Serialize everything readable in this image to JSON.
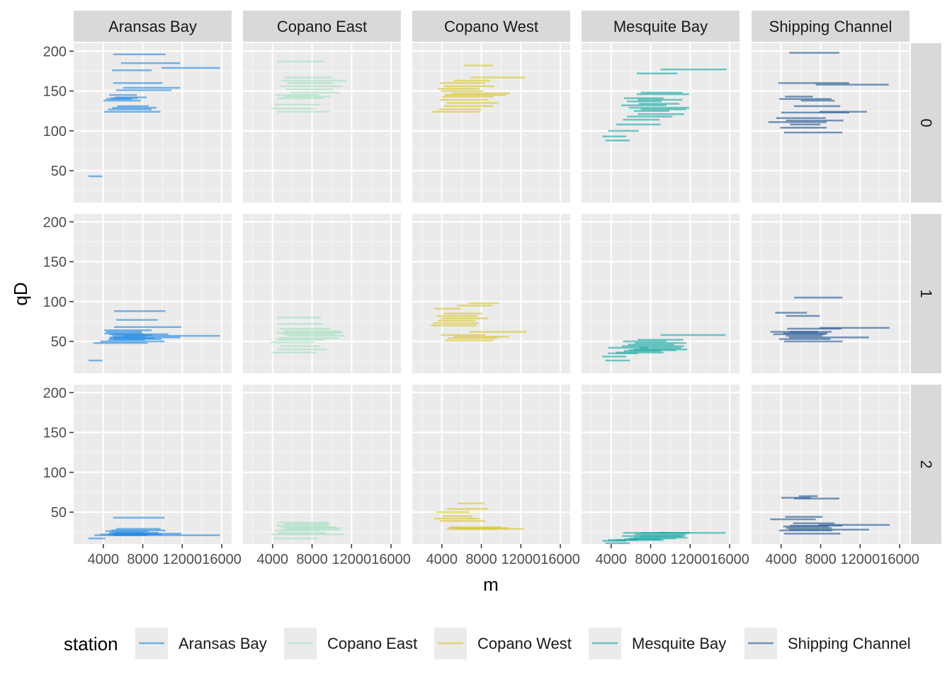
{
  "chart_data": {
    "type": "line",
    "xlabel": "m",
    "ylabel": "qD",
    "x_ticks": [
      4000,
      8000,
      12000,
      16000
    ],
    "y_ticks": [
      50,
      100,
      150,
      200
    ],
    "xlim": [
      1000,
      17000
    ],
    "ylim": [
      10,
      210
    ],
    "facet_cols": [
      "Aransas Bay",
      "Copano East",
      "Copano West",
      "Mesquite Bay",
      "Shipping Channel"
    ],
    "facet_rows": [
      "0",
      "1",
      "2"
    ],
    "legend": {
      "title": "station",
      "position": "bottom",
      "entries": [
        "Aransas Bay",
        "Copano East",
        "Copano West",
        "Mesquite Bay",
        "Shipping Channel"
      ]
    },
    "colors": {
      "Aransas Bay": "#1e88e5",
      "Copano East": "#a3dfbf",
      "Copano West": "#d9c52c",
      "Mesquite Bay": "#16a9a3",
      "Shipping Channel": "#1f5591"
    },
    "panels": [
      {
        "station": "Aransas Bay",
        "row": "0",
        "segments": [
          [
            2500,
            3900,
            43
          ],
          [
            4100,
            9800,
            124
          ],
          [
            4500,
            8900,
            127
          ],
          [
            4900,
            9400,
            129
          ],
          [
            5400,
            8600,
            131
          ],
          [
            4000,
            7800,
            138
          ],
          [
            4300,
            6900,
            140
          ],
          [
            4700,
            7500,
            141
          ],
          [
            5200,
            8400,
            142
          ],
          [
            4600,
            7400,
            145
          ],
          [
            5300,
            10900,
            151
          ],
          [
            6000,
            11800,
            154
          ],
          [
            5000,
            10000,
            160
          ],
          [
            4900,
            8900,
            176
          ],
          [
            9900,
            15800,
            179
          ],
          [
            5800,
            11800,
            185
          ],
          [
            5000,
            10300,
            196
          ]
        ]
      },
      {
        "station": "Copano East",
        "row": "0",
        "segments": [
          [
            4400,
            9800,
            124
          ],
          [
            3900,
            8200,
            128
          ],
          [
            4200,
            8800,
            133
          ],
          [
            4500,
            9200,
            141
          ],
          [
            4300,
            8700,
            145
          ],
          [
            5100,
            9900,
            143
          ],
          [
            5800,
            10800,
            148
          ],
          [
            5400,
            10100,
            152
          ],
          [
            4700,
            11100,
            156
          ],
          [
            5500,
            10200,
            160
          ],
          [
            4900,
            11500,
            163
          ],
          [
            5200,
            10100,
            167
          ],
          [
            4500,
            9200,
            187
          ]
        ]
      },
      {
        "station": "Copano West",
        "row": "0",
        "segments": [
          [
            3000,
            7800,
            124
          ],
          [
            3700,
            8000,
            127
          ],
          [
            4200,
            9200,
            131
          ],
          [
            4500,
            9800,
            135
          ],
          [
            3800,
            8700,
            139
          ],
          [
            4000,
            9200,
            143
          ],
          [
            4300,
            10500,
            145
          ],
          [
            5000,
            10900,
            147
          ],
          [
            3900,
            8200,
            150
          ],
          [
            3600,
            7800,
            153
          ],
          [
            4200,
            9300,
            156
          ],
          [
            3800,
            8400,
            160
          ],
          [
            5200,
            8900,
            163
          ],
          [
            6900,
            12500,
            167
          ],
          [
            6300,
            9200,
            182
          ]
        ]
      },
      {
        "station": "Mesquite Bay",
        "row": "0",
        "segments": [
          [
            3400,
            5900,
            88
          ],
          [
            3100,
            5500,
            93
          ],
          [
            3700,
            6800,
            100
          ],
          [
            4500,
            9000,
            108
          ],
          [
            5200,
            8900,
            114
          ],
          [
            5600,
            10200,
            118
          ],
          [
            6700,
            11400,
            121
          ],
          [
            6300,
            9900,
            125
          ],
          [
            7000,
            11600,
            127
          ],
          [
            5800,
            11900,
            129
          ],
          [
            5000,
            9600,
            132
          ],
          [
            6800,
            10900,
            134
          ],
          [
            5600,
            9100,
            137
          ],
          [
            6700,
            11200,
            139
          ],
          [
            5300,
            9300,
            141
          ],
          [
            6600,
            11900,
            146
          ],
          [
            7000,
            11200,
            148
          ],
          [
            9000,
            15700,
            177
          ],
          [
            6600,
            10700,
            172
          ]
        ]
      },
      {
        "station": "Shipping Channel",
        "row": "0",
        "segments": [
          [
            4300,
            10200,
            98
          ],
          [
            3900,
            8600,
            104
          ],
          [
            4900,
            8000,
            108
          ],
          [
            2700,
            8600,
            111
          ],
          [
            4500,
            10300,
            113
          ],
          [
            3500,
            8500,
            116
          ],
          [
            4000,
            10900,
            123
          ],
          [
            7900,
            12700,
            124
          ],
          [
            5300,
            10000,
            131
          ],
          [
            6000,
            9400,
            138
          ],
          [
            3800,
            9100,
            140
          ],
          [
            4400,
            7200,
            143
          ],
          [
            3700,
            10900,
            160
          ],
          [
            7500,
            14900,
            158
          ],
          [
            4800,
            9900,
            198
          ]
        ]
      },
      {
        "station": "Aransas Bay",
        "row": "1",
        "segments": [
          [
            2500,
            3900,
            26
          ],
          [
            3000,
            8500,
            48
          ],
          [
            3700,
            10200,
            50
          ],
          [
            4500,
            8200,
            52
          ],
          [
            5000,
            9900,
            53
          ],
          [
            4600,
            9200,
            54
          ],
          [
            4700,
            11800,
            55
          ],
          [
            5000,
            8300,
            56
          ],
          [
            6000,
            15800,
            57
          ],
          [
            4900,
            9000,
            58
          ],
          [
            4100,
            8000,
            60
          ],
          [
            4600,
            10600,
            59
          ],
          [
            4300,
            7900,
            62
          ],
          [
            4100,
            8900,
            64
          ],
          [
            5100,
            11900,
            68
          ],
          [
            5300,
            9500,
            77
          ],
          [
            5100,
            10300,
            88
          ]
        ]
      },
      {
        "station": "Copano East",
        "row": "1",
        "segments": [
          [
            3900,
            8400,
            36
          ],
          [
            4500,
            9500,
            40
          ],
          [
            4800,
            8800,
            44
          ],
          [
            3800,
            8200,
            49
          ],
          [
            4300,
            9200,
            52
          ],
          [
            4600,
            10700,
            54
          ],
          [
            5500,
            11300,
            57
          ],
          [
            5000,
            10400,
            59
          ],
          [
            4400,
            11100,
            61
          ],
          [
            5200,
            10900,
            63
          ],
          [
            4700,
            9900,
            66
          ],
          [
            4500,
            9100,
            72
          ],
          [
            4500,
            8900,
            80
          ]
        ]
      },
      {
        "station": "Copano West",
        "row": "1",
        "segments": [
          [
            4300,
            9200,
            51
          ],
          [
            4600,
            9600,
            54
          ],
          [
            5200,
            10800,
            56
          ],
          [
            3900,
            8400,
            58
          ],
          [
            6800,
            12600,
            62
          ],
          [
            2900,
            7500,
            70
          ],
          [
            3100,
            7700,
            73
          ],
          [
            3600,
            7400,
            76
          ],
          [
            3900,
            8700,
            79
          ],
          [
            3500,
            7600,
            82
          ],
          [
            4200,
            8100,
            85
          ],
          [
            3200,
            5900,
            91
          ],
          [
            5500,
            9100,
            95
          ],
          [
            6700,
            9800,
            98
          ]
        ]
      },
      {
        "station": "Mesquite Bay",
        "row": "1",
        "segments": [
          [
            3400,
            5900,
            26
          ],
          [
            3100,
            5500,
            31
          ],
          [
            3700,
            6700,
            35
          ],
          [
            4500,
            9300,
            36
          ],
          [
            5300,
            9000,
            38
          ],
          [
            5800,
            10600,
            39
          ],
          [
            6300,
            11700,
            40
          ],
          [
            6900,
            11100,
            42
          ],
          [
            5100,
            11400,
            44
          ],
          [
            5700,
            10400,
            46
          ],
          [
            6400,
            11600,
            48
          ],
          [
            5200,
            9600,
            50
          ],
          [
            6700,
            11300,
            52
          ],
          [
            3700,
            7700,
            42
          ],
          [
            9000,
            15600,
            58
          ]
        ]
      },
      {
        "station": "Shipping Channel",
        "row": "1",
        "segments": [
          [
            4300,
            10200,
            50
          ],
          [
            3800,
            9000,
            53
          ],
          [
            4800,
            12900,
            55
          ],
          [
            4500,
            8200,
            57
          ],
          [
            3200,
            8500,
            59
          ],
          [
            4200,
            8700,
            60
          ],
          [
            4900,
            9100,
            62
          ],
          [
            2900,
            7700,
            62
          ],
          [
            4600,
            10100,
            66
          ],
          [
            7900,
            15000,
            67
          ],
          [
            4500,
            7900,
            82
          ],
          [
            3400,
            6600,
            86
          ],
          [
            5300,
            10200,
            105
          ]
        ]
      },
      {
        "station": "Aransas Bay",
        "row": "2",
        "segments": [
          [
            2500,
            4200,
            17
          ],
          [
            3100,
            8400,
            21
          ],
          [
            3700,
            9900,
            22
          ],
          [
            4500,
            8800,
            22
          ],
          [
            4900,
            11900,
            23
          ],
          [
            5200,
            9600,
            24
          ],
          [
            4600,
            8200,
            24
          ],
          [
            5100,
            15800,
            21
          ],
          [
            4200,
            8600,
            26
          ],
          [
            4800,
            10300,
            27
          ],
          [
            5300,
            9800,
            29
          ],
          [
            5000,
            10200,
            43
          ]
        ]
      },
      {
        "station": "Copano East",
        "row": "2",
        "segments": [
          [
            4100,
            8600,
            17
          ],
          [
            3900,
            11200,
            22
          ],
          [
            4500,
            9400,
            24
          ],
          [
            4200,
            8800,
            27
          ],
          [
            5000,
            10800,
            28
          ],
          [
            5400,
            11000,
            30
          ],
          [
            4800,
            10400,
            31
          ],
          [
            4400,
            9700,
            33
          ],
          [
            5200,
            9900,
            35
          ],
          [
            4600,
            9600,
            37
          ]
        ]
      },
      {
        "station": "Copano West",
        "row": "2",
        "segments": [
          [
            4500,
            9600,
            29
          ],
          [
            5000,
            10800,
            30
          ],
          [
            4700,
            10000,
            31
          ],
          [
            5500,
            12300,
            29
          ],
          [
            3800,
            8400,
            39
          ],
          [
            3200,
            7800,
            42
          ],
          [
            4000,
            7100,
            45
          ],
          [
            3500,
            6800,
            50
          ],
          [
            4500,
            8700,
            54
          ],
          [
            5600,
            8300,
            61
          ]
        ]
      },
      {
        "station": "Mesquite Bay",
        "row": "2",
        "segments": [
          [
            3400,
            5900,
            11
          ],
          [
            3100,
            5500,
            14
          ],
          [
            3700,
            6700,
            15
          ],
          [
            4500,
            9300,
            15
          ],
          [
            5300,
            9000,
            16
          ],
          [
            5800,
            10600,
            17
          ],
          [
            6300,
            11700,
            18
          ],
          [
            6900,
            11100,
            20
          ],
          [
            5100,
            11400,
            20
          ],
          [
            6400,
            11600,
            22
          ],
          [
            5200,
            9600,
            24
          ],
          [
            7000,
            12000,
            24
          ],
          [
            9000,
            15600,
            24
          ]
        ]
      },
      {
        "station": "Shipping Channel",
        "row": "2",
        "segments": [
          [
            4300,
            10000,
            23
          ],
          [
            3800,
            9200,
            27
          ],
          [
            4800,
            12900,
            28
          ],
          [
            4500,
            9100,
            30
          ],
          [
            4200,
            8800,
            32
          ],
          [
            4900,
            10200,
            33
          ],
          [
            7800,
            15000,
            34
          ],
          [
            5200,
            9400,
            36
          ],
          [
            2900,
            7500,
            41
          ],
          [
            4400,
            8200,
            44
          ],
          [
            4000,
            7000,
            68
          ],
          [
            5300,
            9900,
            67
          ],
          [
            5800,
            7700,
            70
          ]
        ]
      }
    ]
  }
}
